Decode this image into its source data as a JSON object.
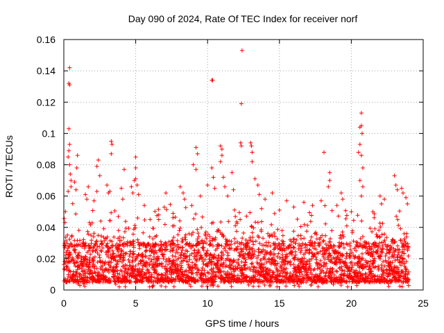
{
  "chart_data": {
    "type": "scatter",
    "title": "Day 090 of 2024, Rate Of TEC Index for receiver norf",
    "xlabel": "GPS time / hours",
    "ylabel": "ROTI / TECUs",
    "xlim": [
      0,
      25
    ],
    "ylim": [
      0,
      0.16
    ],
    "x_ticks": [
      {
        "value": 0,
        "label": "0"
      },
      {
        "value": 5,
        "label": "5"
      },
      {
        "value": 10,
        "label": "10"
      },
      {
        "value": 15,
        "label": "15"
      },
      {
        "value": 20,
        "label": "20"
      },
      {
        "value": 25,
        "label": "25"
      }
    ],
    "y_ticks": [
      {
        "value": 0,
        "label": "0"
      },
      {
        "value": 0.02,
        "label": "0.02"
      },
      {
        "value": 0.04,
        "label": "0.04"
      },
      {
        "value": 0.06,
        "label": "0.06"
      },
      {
        "value": 0.08,
        "label": "0.08"
      },
      {
        "value": 0.1,
        "label": "0.1"
      },
      {
        "value": 0.12,
        "label": "0.12"
      },
      {
        "value": 0.14,
        "label": "0.14"
      },
      {
        "value": 0.16,
        "label": "0.16"
      }
    ],
    "grid": true,
    "marker": "plus",
    "series": [
      {
        "name": "ROTI",
        "color": "#ff0000",
        "x_range": [
          0,
          24
        ],
        "baseline_range": [
          0.005,
          0.03
        ],
        "outliers": [
          {
            "x": 0.4,
            "y": 0.142
          },
          {
            "x": 0.35,
            "y": 0.132
          },
          {
            "x": 0.4,
            "y": 0.131
          },
          {
            "x": 0.35,
            "y": 0.103
          },
          {
            "x": 0.4,
            "y": 0.093
          },
          {
            "x": 0.35,
            "y": 0.089
          },
          {
            "x": 0.3,
            "y": 0.085
          },
          {
            "x": 0.4,
            "y": 0.08
          },
          {
            "x": 0.45,
            "y": 0.074
          },
          {
            "x": 0.5,
            "y": 0.07
          },
          {
            "x": 0.5,
            "y": 0.066
          },
          {
            "x": 0.3,
            "y": 0.063
          },
          {
            "x": 0.95,
            "y": 0.086
          },
          {
            "x": 0.9,
            "y": 0.078
          },
          {
            "x": 0.85,
            "y": 0.064
          },
          {
            "x": 0.75,
            "y": 0.069
          },
          {
            "x": 1.5,
            "y": 0.061
          },
          {
            "x": 1.6,
            "y": 0.058
          },
          {
            "x": 1.7,
            "y": 0.066
          },
          {
            "x": 2.1,
            "y": 0.057
          },
          {
            "x": 2.3,
            "y": 0.063
          },
          {
            "x": 2.4,
            "y": 0.083
          },
          {
            "x": 2.5,
            "y": 0.073
          },
          {
            "x": 2.3,
            "y": 0.079
          },
          {
            "x": 3.0,
            "y": 0.067
          },
          {
            "x": 3.1,
            "y": 0.062
          },
          {
            "x": 3.3,
            "y": 0.095
          },
          {
            "x": 3.35,
            "y": 0.093
          },
          {
            "x": 3.3,
            "y": 0.087
          },
          {
            "x": 3.2,
            "y": 0.063
          },
          {
            "x": 4.0,
            "y": 0.065
          },
          {
            "x": 4.1,
            "y": 0.058
          },
          {
            "x": 4.2,
            "y": 0.077
          },
          {
            "x": 4.7,
            "y": 0.066
          },
          {
            "x": 4.8,
            "y": 0.062
          },
          {
            "x": 5.0,
            "y": 0.085
          },
          {
            "x": 5.0,
            "y": 0.078
          },
          {
            "x": 5.0,
            "y": 0.071
          },
          {
            "x": 4.9,
            "y": 0.07
          },
          {
            "x": 5.1,
            "y": 0.067
          },
          {
            "x": 5.2,
            "y": 0.061
          },
          {
            "x": 5.6,
            "y": 0.054
          },
          {
            "x": 6.6,
            "y": 0.048
          },
          {
            "x": 6.6,
            "y": 0.045
          },
          {
            "x": 7.1,
            "y": 0.062
          },
          {
            "x": 7.6,
            "y": 0.049
          },
          {
            "x": 8.1,
            "y": 0.066
          },
          {
            "x": 8.3,
            "y": 0.062
          },
          {
            "x": 8.4,
            "y": 0.058
          },
          {
            "x": 9.0,
            "y": 0.08
          },
          {
            "x": 9.2,
            "y": 0.091
          },
          {
            "x": 9.3,
            "y": 0.087
          },
          {
            "x": 9.2,
            "y": 0.077
          },
          {
            "x": 9.5,
            "y": 0.06
          },
          {
            "x": 10.0,
            "y": 0.067
          },
          {
            "x": 10.3,
            "y": 0.134
          },
          {
            "x": 10.35,
            "y": 0.134
          },
          {
            "x": 10.3,
            "y": 0.078
          },
          {
            "x": 10.4,
            "y": 0.072
          },
          {
            "x": 10.5,
            "y": 0.065
          },
          {
            "x": 10.9,
            "y": 0.092
          },
          {
            "x": 11.0,
            "y": 0.09
          },
          {
            "x": 11.0,
            "y": 0.086
          },
          {
            "x": 10.9,
            "y": 0.082
          },
          {
            "x": 11.1,
            "y": 0.072
          },
          {
            "x": 11.2,
            "y": 0.066
          },
          {
            "x": 11.4,
            "y": 0.06
          },
          {
            "x": 11.8,
            "y": 0.064
          },
          {
            "x": 11.7,
            "y": 0.075
          },
          {
            "x": 12.4,
            "y": 0.153
          },
          {
            "x": 12.35,
            "y": 0.119
          },
          {
            "x": 12.3,
            "y": 0.094
          },
          {
            "x": 12.35,
            "y": 0.092
          },
          {
            "x": 13.0,
            "y": 0.094
          },
          {
            "x": 13.05,
            "y": 0.092
          },
          {
            "x": 13.1,
            "y": 0.088
          },
          {
            "x": 13.1,
            "y": 0.082
          },
          {
            "x": 13.3,
            "y": 0.071
          },
          {
            "x": 13.5,
            "y": 0.067
          },
          {
            "x": 13.6,
            "y": 0.061
          },
          {
            "x": 14.0,
            "y": 0.058
          },
          {
            "x": 14.5,
            "y": 0.062
          },
          {
            "x": 15.0,
            "y": 0.051
          },
          {
            "x": 15.5,
            "y": 0.057
          },
          {
            "x": 16.0,
            "y": 0.053
          },
          {
            "x": 16.7,
            "y": 0.056
          },
          {
            "x": 17.3,
            "y": 0.054
          },
          {
            "x": 17.9,
            "y": 0.057
          },
          {
            "x": 18.1,
            "y": 0.088
          },
          {
            "x": 18.5,
            "y": 0.075
          },
          {
            "x": 18.5,
            "y": 0.07
          },
          {
            "x": 18.4,
            "y": 0.066
          },
          {
            "x": 19.0,
            "y": 0.054
          },
          {
            "x": 19.3,
            "y": 0.062
          },
          {
            "x": 19.4,
            "y": 0.058
          },
          {
            "x": 20.0,
            "y": 0.05
          },
          {
            "x": 20.5,
            "y": 0.088
          },
          {
            "x": 20.6,
            "y": 0.104
          },
          {
            "x": 20.7,
            "y": 0.113
          },
          {
            "x": 20.7,
            "y": 0.105
          },
          {
            "x": 20.75,
            "y": 0.1
          },
          {
            "x": 20.6,
            "y": 0.093
          },
          {
            "x": 20.7,
            "y": 0.086
          },
          {
            "x": 20.8,
            "y": 0.078
          },
          {
            "x": 20.6,
            "y": 0.07
          },
          {
            "x": 20.8,
            "y": 0.066
          },
          {
            "x": 20.7,
            "y": 0.06
          },
          {
            "x": 21.5,
            "y": 0.05
          },
          {
            "x": 22.0,
            "y": 0.06
          },
          {
            "x": 22.1,
            "y": 0.055
          },
          {
            "x": 22.3,
            "y": 0.058
          },
          {
            "x": 23.0,
            "y": 0.073
          },
          {
            "x": 23.1,
            "y": 0.067
          },
          {
            "x": 23.2,
            "y": 0.064
          },
          {
            "x": 23.5,
            "y": 0.065
          },
          {
            "x": 23.6,
            "y": 0.062
          },
          {
            "x": 23.8,
            "y": 0.059
          },
          {
            "x": 23.9,
            "y": 0.055
          }
        ]
      }
    ]
  }
}
